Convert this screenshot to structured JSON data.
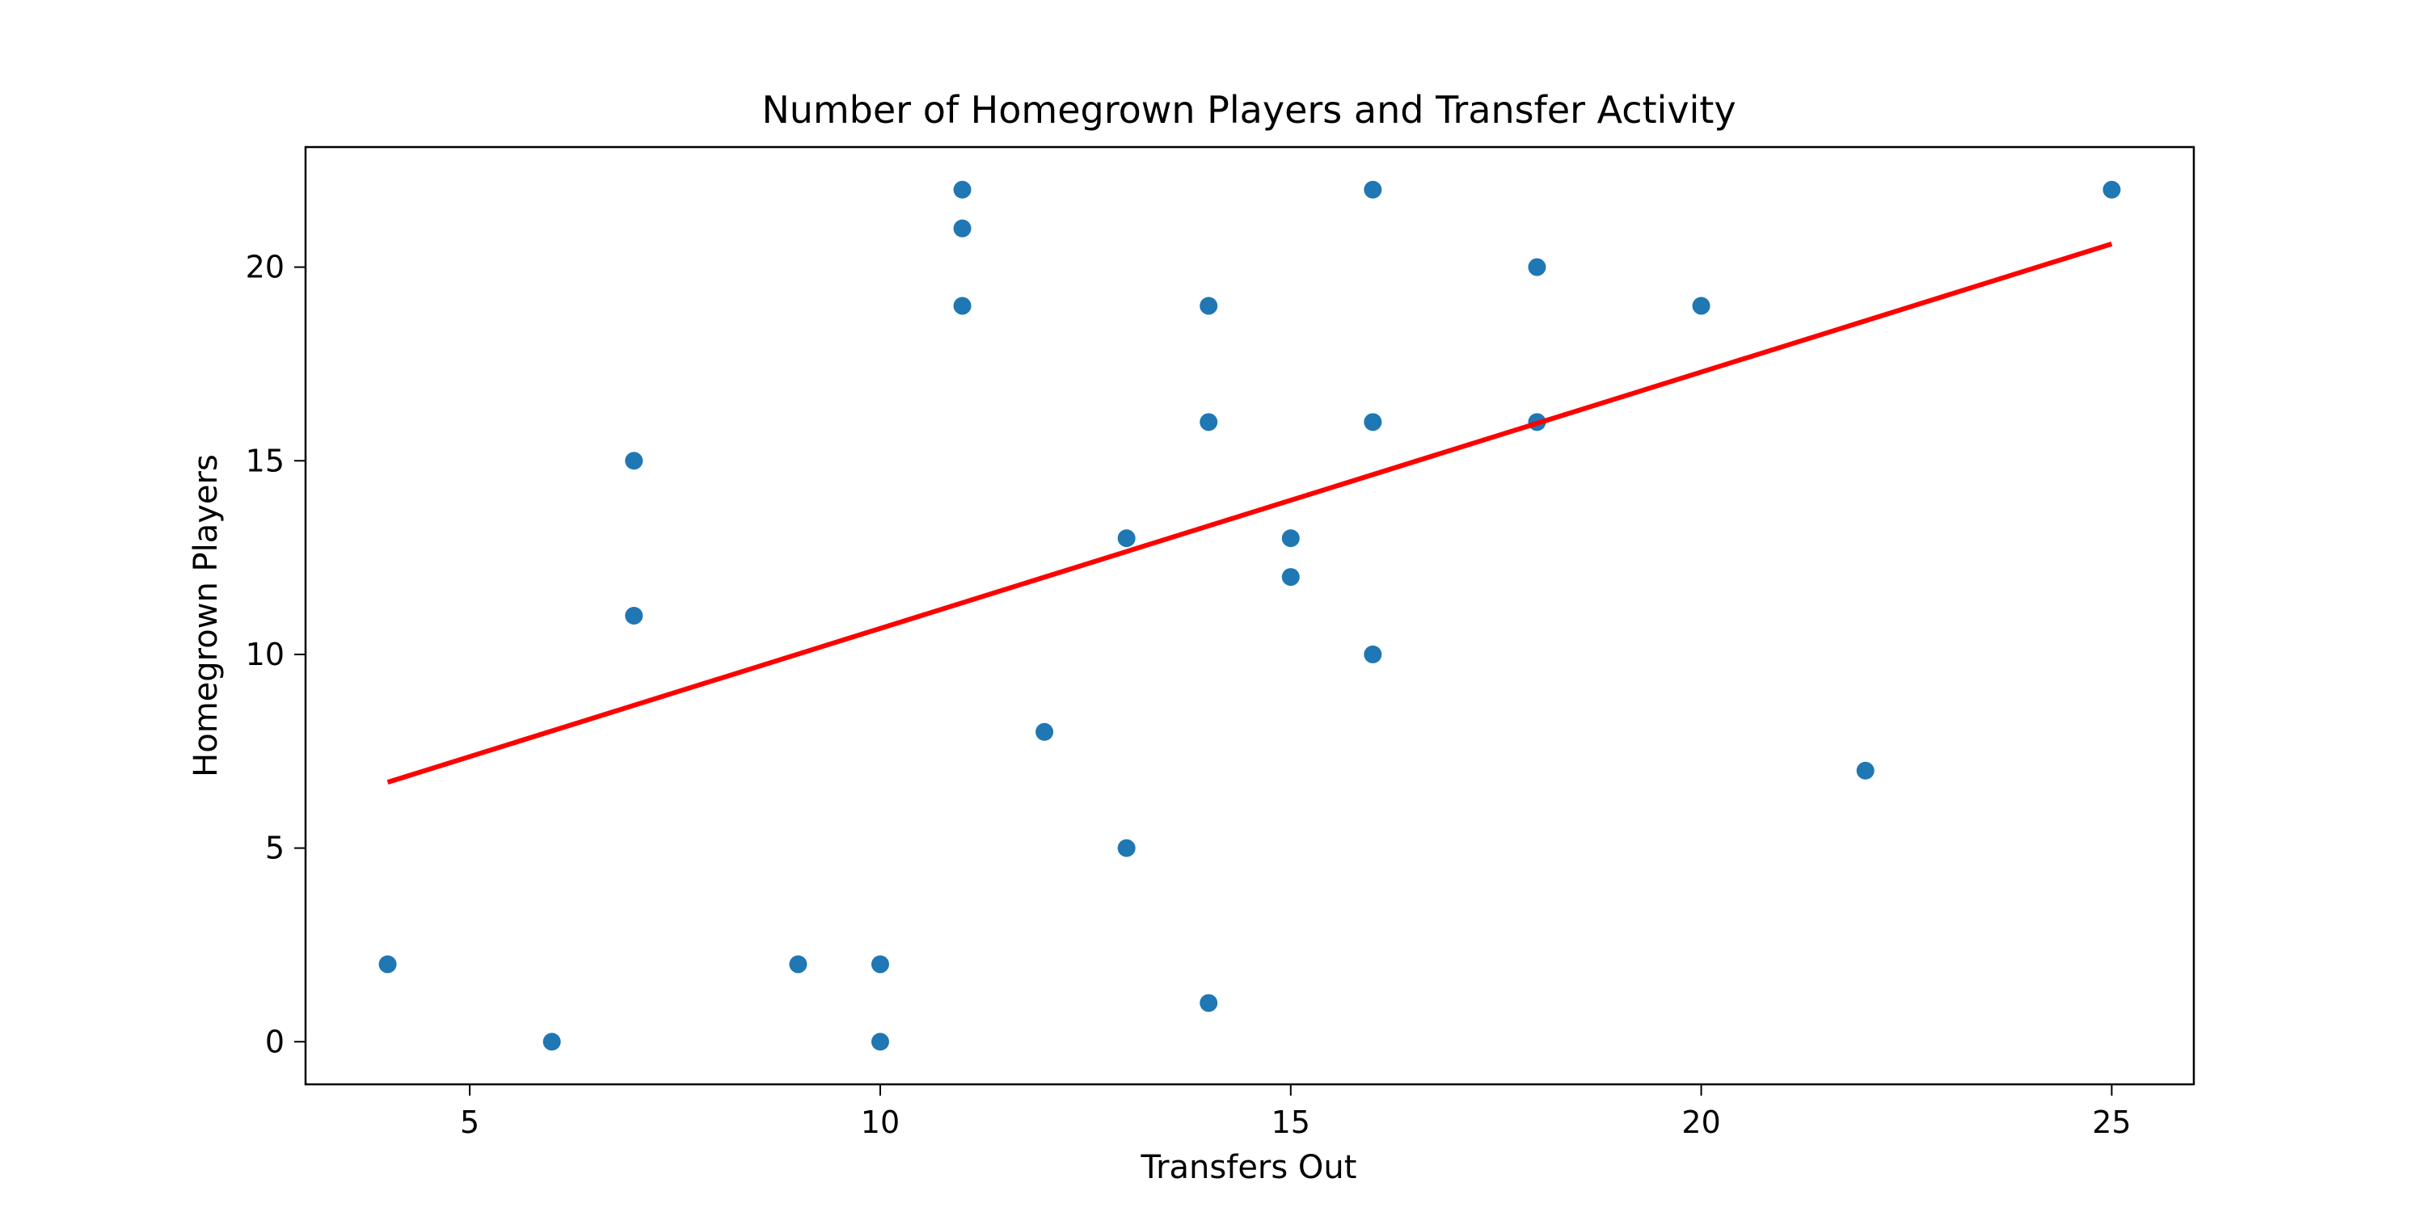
{
  "chart_data": {
    "type": "scatter",
    "title": "Number of Homegrown Players and Transfer Activity",
    "xlabel": "Transfers Out",
    "ylabel": "Homegrown Players",
    "xlim": [
      3,
      26
    ],
    "ylim": [
      -1.1,
      23.1
    ],
    "xticks": [
      5,
      10,
      15,
      20,
      25
    ],
    "yticks": [
      0,
      5,
      10,
      15,
      20
    ],
    "grid": false,
    "points": [
      {
        "x": 4,
        "y": 2
      },
      {
        "x": 6,
        "y": 0
      },
      {
        "x": 7,
        "y": 15
      },
      {
        "x": 7,
        "y": 11
      },
      {
        "x": 9,
        "y": 2
      },
      {
        "x": 10,
        "y": 2
      },
      {
        "x": 10,
        "y": 0
      },
      {
        "x": 11,
        "y": 22
      },
      {
        "x": 11,
        "y": 21
      },
      {
        "x": 11,
        "y": 19
      },
      {
        "x": 12,
        "y": 8
      },
      {
        "x": 13,
        "y": 13
      },
      {
        "x": 13,
        "y": 5
      },
      {
        "x": 14,
        "y": 19
      },
      {
        "x": 14,
        "y": 16
      },
      {
        "x": 14,
        "y": 1
      },
      {
        "x": 15,
        "y": 13
      },
      {
        "x": 15,
        "y": 12
      },
      {
        "x": 16,
        "y": 22
      },
      {
        "x": 16,
        "y": 16
      },
      {
        "x": 16,
        "y": 10
      },
      {
        "x": 18,
        "y": 20
      },
      {
        "x": 18,
        "y": 16
      },
      {
        "x": 20,
        "y": 19
      },
      {
        "x": 22,
        "y": 7
      },
      {
        "x": 25,
        "y": 22
      }
    ],
    "trendline": {
      "x": [
        4,
        25
      ],
      "y": [
        6.7,
        20.6
      ]
    },
    "colors": {
      "points": "#1f77b4",
      "trendline": "#ff0000"
    }
  }
}
